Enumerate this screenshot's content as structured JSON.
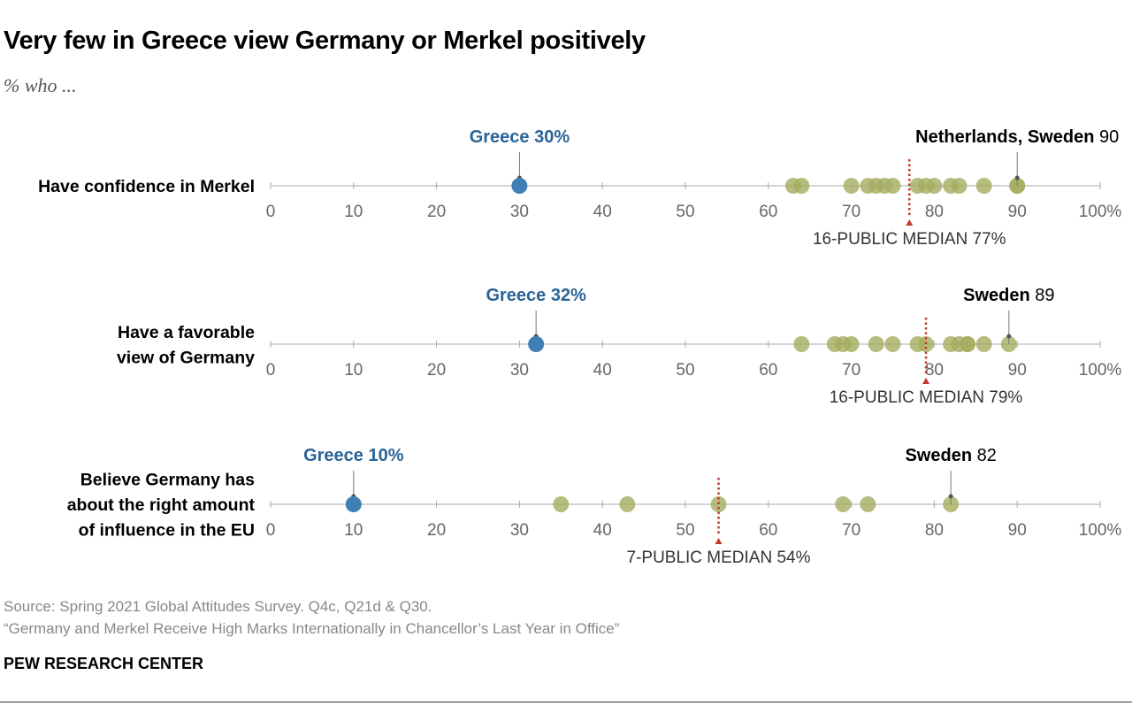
{
  "title": "Very few in Greece view Germany or Merkel positively",
  "subtitle": "% who ...",
  "source": "Source: Spring 2021 Global Attitudes Survey. Q4c, Q21d & Q30.",
  "report": "“Germany and Merkel Receive High Marks Internationally in Chancellor’s Last Year in Office”",
  "brand": "PEW RESEARCH CENTER",
  "colors": {
    "dot": "#a4ad5f",
    "greece": "#3f7fb3",
    "greece_label": "#2a6496",
    "median": "#c0392b",
    "axis": "#aaaaaa",
    "tick_label": "#666666"
  },
  "chart_data": {
    "type": "dot-plot",
    "x_range": [
      0,
      100
    ],
    "ticks": [
      0,
      10,
      20,
      30,
      40,
      50,
      60,
      70,
      80,
      90,
      100
    ],
    "tick_labels": [
      "0",
      "10",
      "20",
      "30",
      "40",
      "50",
      "60",
      "70",
      "80",
      "90",
      "100%"
    ],
    "rows": [
      {
        "label_lines": [
          "Have confidence in Merkel"
        ],
        "values": [
          63,
          64,
          70,
          72,
          73,
          74,
          75,
          78,
          79,
          80,
          82,
          83,
          86,
          90,
          90
        ],
        "highlight": {
          "name": "Greece",
          "value": 30,
          "label": "Greece 30%"
        },
        "top": {
          "name": "Netherlands, Sweden",
          "value": 90,
          "label": "90"
        },
        "median": {
          "value": 77,
          "label": "16-PUBLIC MEDIAN 77%"
        }
      },
      {
        "label_lines": [
          "Have a favorable",
          "view of Germany"
        ],
        "values": [
          64,
          68,
          69,
          70,
          73,
          75,
          78,
          79,
          82,
          83,
          84,
          84,
          86,
          89
        ],
        "highlight": {
          "name": "Greece",
          "value": 32,
          "label": "Greece 32%"
        },
        "top": {
          "name": "Sweden",
          "value": 89,
          "label": "89"
        },
        "median": {
          "value": 79,
          "label": "16-PUBLIC MEDIAN 79%"
        }
      },
      {
        "label_lines": [
          "Believe Germany has",
          "about the right amount",
          "of influence in the EU"
        ],
        "values": [
          35,
          43,
          54,
          69,
          72,
          82
        ],
        "highlight": {
          "name": "Greece",
          "value": 10,
          "label": "Greece 10%"
        },
        "top": {
          "name": "Sweden",
          "value": 82,
          "label": "82"
        },
        "median": {
          "value": 54,
          "label": "7-PUBLIC MEDIAN 54%"
        }
      }
    ]
  }
}
